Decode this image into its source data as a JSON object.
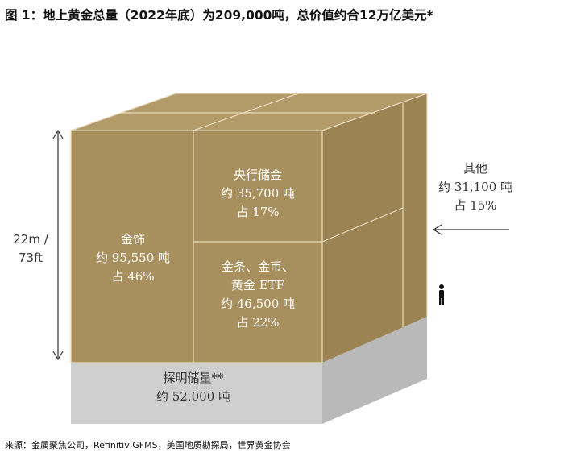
{
  "header": {
    "title": "图 1：地上黄金总量（2022年底）为209,000吨，总价值约合12万亿美元*"
  },
  "diagram": {
    "height_label": [
      "22m /",
      "73ft"
    ],
    "segments": [
      {
        "lines": [
          "金饰",
          "约 95,550 吨",
          "占 46%"
        ]
      },
      {
        "lines": [
          "央行储金",
          "约 35,700 吨",
          "占 17%"
        ]
      },
      {
        "lines": [
          "金条、金币、",
          "黄金 ETF",
          "约 46,500 吨",
          "占 22%"
        ]
      },
      {
        "lines": [
          "其他",
          "约 31,100 吨",
          "占 15%"
        ]
      },
      {
        "lines": [
          "探明储量**",
          "约 52,000 吨"
        ]
      }
    ]
  },
  "footer": {
    "source": "来源：金属聚焦公司，Refinitiv GFMS，美国地质勘探局，世界黄金协会"
  }
}
